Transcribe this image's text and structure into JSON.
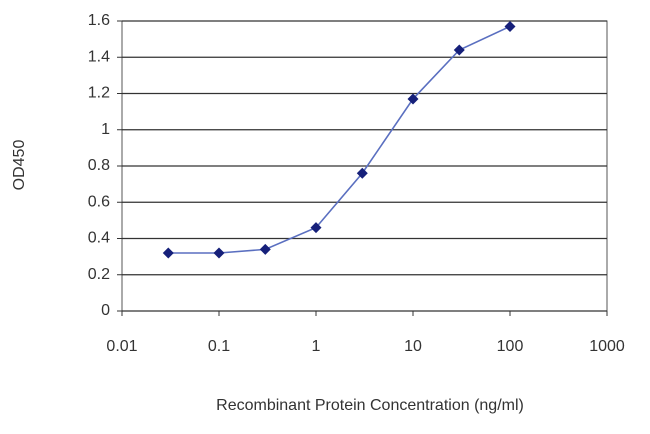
{
  "chart_data": {
    "type": "line",
    "log_x": true,
    "x_label": "Recombinant Protein Concentration (ng/ml)",
    "y_label": "OD450",
    "x": [
      0.03,
      0.1,
      0.3,
      1,
      3,
      10,
      30,
      100
    ],
    "series": [
      {
        "color": "#5a6fc0",
        "marker_color": "#16207a",
        "values": [
          0.32,
          0.32,
          0.34,
          0.46,
          0.76,
          1.17,
          1.44,
          1.57
        ]
      }
    ],
    "xlim": [
      0.01,
      1000
    ],
    "xticks": [
      0.01,
      0.1,
      1,
      10,
      100,
      1000
    ],
    "ylim": [
      0,
      1.6
    ],
    "yticks": [
      0,
      0.2,
      0.4,
      0.6,
      0.8,
      1,
      1.2,
      1.4,
      1.6
    ],
    "grid": true
  }
}
